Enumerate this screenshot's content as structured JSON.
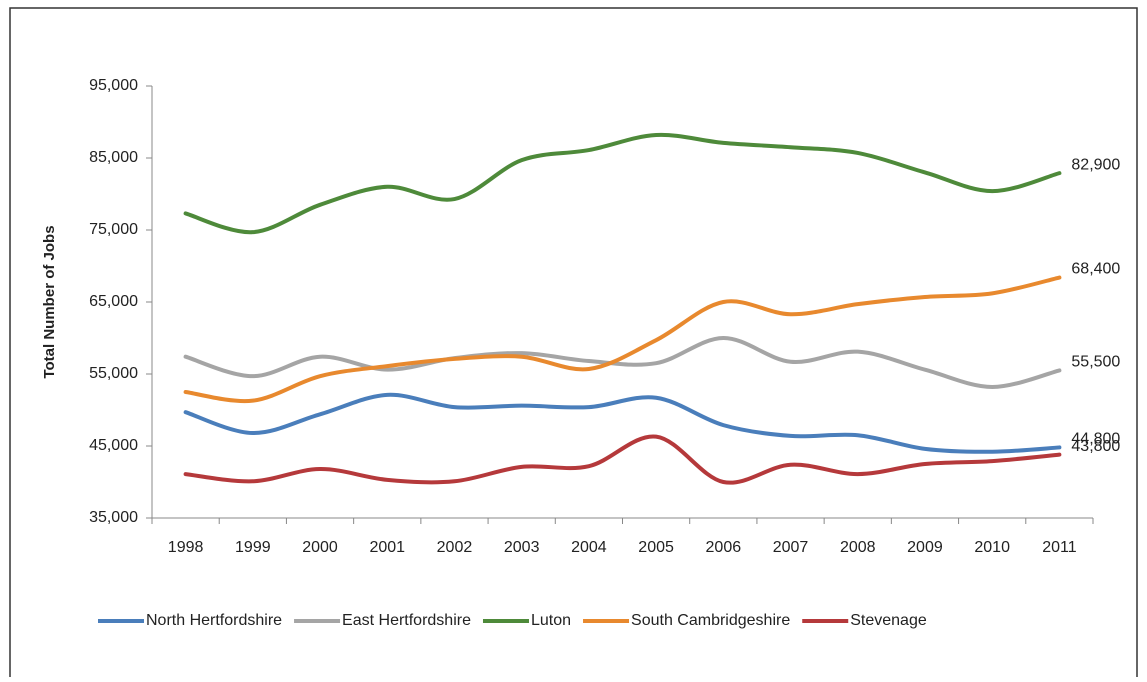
{
  "chart_data": {
    "type": "line",
    "y_label": "Total Number of Jobs",
    "categories": [
      "1998",
      "1999",
      "2000",
      "2001",
      "2002",
      "2003",
      "2004",
      "2005",
      "2006",
      "2007",
      "2008",
      "2009",
      "2010",
      "2011"
    ],
    "ylim": [
      35000,
      95000
    ],
    "yticks": [
      {
        "value": 35000,
        "label": "35,000"
      },
      {
        "value": 45000,
        "label": "45,000"
      },
      {
        "value": 55000,
        "label": "55,000"
      },
      {
        "value": 65000,
        "label": "65,000"
      },
      {
        "value": 75000,
        "label": "75,000"
      },
      {
        "value": 85000,
        "label": "85,000"
      },
      {
        "value": 95000,
        "label": "95,000"
      }
    ],
    "legend": "bottom",
    "series": [
      {
        "name": "North Hertfordshire",
        "color": "#4a7ebb",
        "values": [
          49700,
          46800,
          49400,
          52100,
          50400,
          50600,
          50400,
          51700,
          47900,
          46400,
          46500,
          44600,
          44200,
          44800
        ],
        "value_labels": [
          null,
          null,
          null,
          null,
          null,
          null,
          null,
          null,
          null,
          null,
          null,
          null,
          null,
          "44,800"
        ]
      },
      {
        "name": "East Hertfordshire",
        "color": "#a5a5a5",
        "values": [
          57400,
          54700,
          57400,
          55600,
          57200,
          57900,
          56800,
          56500,
          60000,
          56700,
          58100,
          55600,
          53200,
          55500
        ],
        "value_labels": [
          null,
          null,
          null,
          null,
          null,
          null,
          null,
          null,
          null,
          null,
          null,
          null,
          null,
          "55,500"
        ]
      },
      {
        "name": "Luton",
        "color": "#4e8a3a",
        "values": [
          77300,
          74700,
          78500,
          81000,
          79300,
          84700,
          86100,
          88200,
          87100,
          86500,
          85700,
          83000,
          80400,
          82900
        ],
        "value_labels": [
          null,
          null,
          null,
          null,
          null,
          null,
          null,
          null,
          null,
          null,
          null,
          null,
          null,
          "82,900"
        ]
      },
      {
        "name": "South Cambridgeshire",
        "color": "#e8892e",
        "values": [
          52500,
          51300,
          54700,
          56100,
          57100,
          57400,
          55700,
          59700,
          65000,
          63300,
          64700,
          65700,
          66200,
          68400
        ],
        "value_labels": [
          null,
          null,
          null,
          null,
          null,
          null,
          null,
          null,
          null,
          null,
          null,
          null,
          null,
          "68,400"
        ]
      },
      {
        "name": "Stevenage",
        "color": "#b5393b",
        "values": [
          41100,
          40100,
          41800,
          40300,
          40100,
          42100,
          42200,
          46300,
          40000,
          42400,
          41100,
          42500,
          42900,
          43800
        ],
        "value_labels": [
          null,
          null,
          null,
          null,
          null,
          null,
          null,
          null,
          null,
          null,
          null,
          null,
          null,
          "43,800"
        ]
      }
    ]
  }
}
